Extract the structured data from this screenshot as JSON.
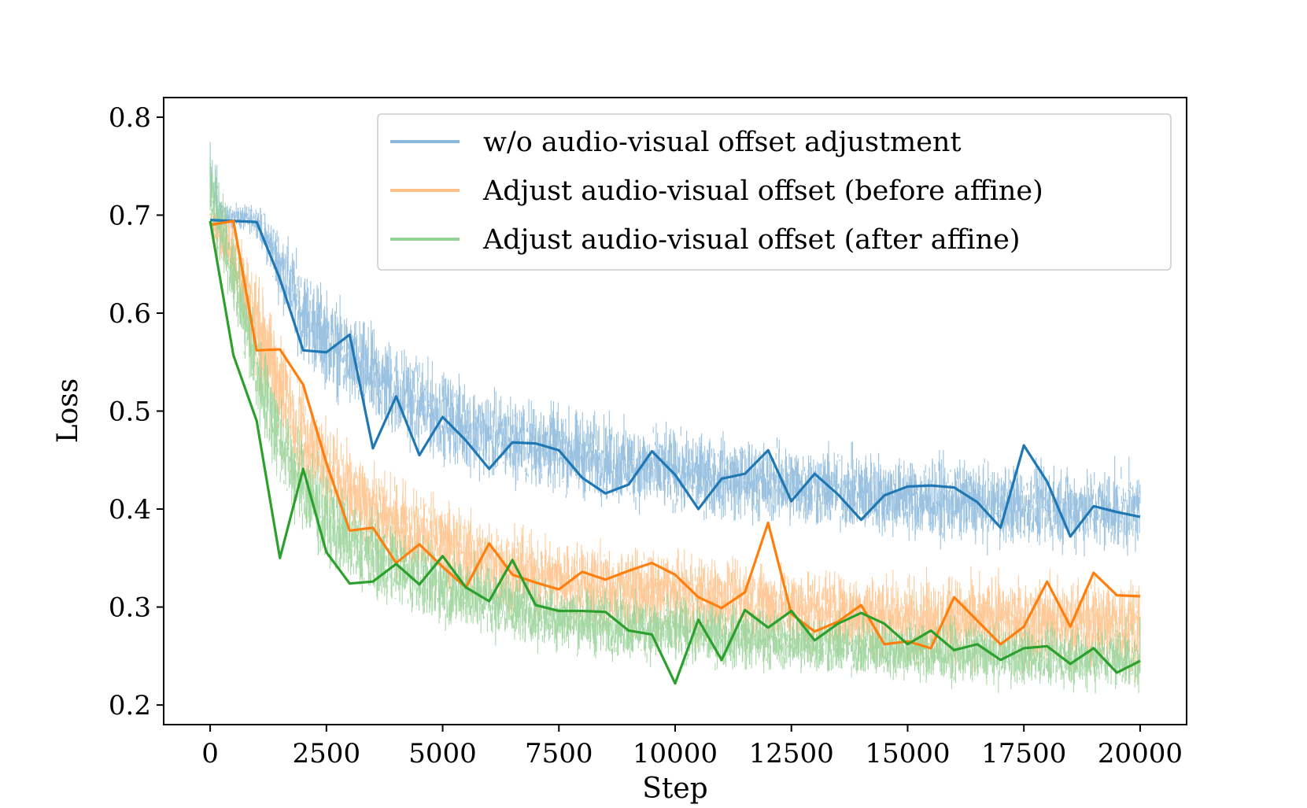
{
  "chart_data": {
    "type": "line",
    "title": "",
    "xlabel": "Step",
    "ylabel": "Loss",
    "xlim": [
      -1000,
      21000
    ],
    "ylim": [
      0.18,
      0.82
    ],
    "xticks": [
      0,
      2500,
      5000,
      7500,
      10000,
      12500,
      15000,
      17500,
      20000
    ],
    "yticks": [
      0.2,
      0.3,
      0.4,
      0.5,
      0.6,
      0.7,
      0.8
    ],
    "grid": false,
    "legend_position": "top-right",
    "series": [
      {
        "name": "w/o audio-visual offset adjustment",
        "color": "#1f77b4",
        "raw_color": "#8ab8dc",
        "raw_band": [
          [
            0,
            0.66,
            0.79
          ],
          [
            300,
            0.688,
            0.71
          ],
          [
            1000,
            0.68,
            0.71
          ],
          [
            1500,
            0.61,
            0.69
          ],
          [
            2000,
            0.55,
            0.65
          ],
          [
            3000,
            0.5,
            0.6
          ],
          [
            4000,
            0.47,
            0.57
          ],
          [
            5000,
            0.45,
            0.54
          ],
          [
            6000,
            0.43,
            0.52
          ],
          [
            7000,
            0.42,
            0.51
          ],
          [
            8000,
            0.41,
            0.5
          ],
          [
            9000,
            0.4,
            0.49
          ],
          [
            10000,
            0.395,
            0.48
          ],
          [
            12000,
            0.385,
            0.47
          ],
          [
            14000,
            0.375,
            0.46
          ],
          [
            16000,
            0.365,
            0.45
          ],
          [
            18000,
            0.36,
            0.445
          ],
          [
            20000,
            0.355,
            0.44
          ]
        ],
        "x": [
          0,
          500,
          1000,
          1500,
          2000,
          2500,
          3000,
          3500,
          4000,
          4500,
          5000,
          5500,
          6000,
          6500,
          7000,
          7500,
          8000,
          8500,
          9000,
          9500,
          10000,
          10500,
          11000,
          11500,
          12000,
          12500,
          13000,
          13500,
          14000,
          14500,
          15000,
          15500,
          16000,
          16500,
          17000,
          17500,
          18000,
          18500,
          19000,
          19500,
          20000
        ],
        "y": [
          0.695,
          0.694,
          0.693,
          0.635,
          0.562,
          0.56,
          0.578,
          0.462,
          0.515,
          0.455,
          0.494,
          0.47,
          0.441,
          0.468,
          0.467,
          0.46,
          0.432,
          0.416,
          0.425,
          0.459,
          0.435,
          0.4,
          0.431,
          0.436,
          0.46,
          0.408,
          0.436,
          0.415,
          0.389,
          0.414,
          0.423,
          0.424,
          0.422,
          0.407,
          0.381,
          0.465,
          0.428,
          0.372,
          0.403,
          0.397,
          0.392
        ]
      },
      {
        "name": "Adjust audio-visual offset (before affine)",
        "color": "#ff7f0e",
        "raw_color": "#ffbf86",
        "raw_band": [
          [
            0,
            0.68,
            0.71
          ],
          [
            500,
            0.62,
            0.7
          ],
          [
            1000,
            0.53,
            0.64
          ],
          [
            1500,
            0.47,
            0.58
          ],
          [
            2000,
            0.42,
            0.53
          ],
          [
            3000,
            0.37,
            0.46
          ],
          [
            4000,
            0.34,
            0.43
          ],
          [
            5000,
            0.32,
            0.41
          ],
          [
            6000,
            0.3,
            0.39
          ],
          [
            7000,
            0.29,
            0.375
          ],
          [
            8000,
            0.28,
            0.365
          ],
          [
            10000,
            0.27,
            0.355
          ],
          [
            12000,
            0.26,
            0.345
          ],
          [
            14000,
            0.25,
            0.335
          ],
          [
            16000,
            0.245,
            0.33
          ],
          [
            18000,
            0.24,
            0.33
          ],
          [
            20000,
            0.235,
            0.33
          ]
        ],
        "x": [
          0,
          500,
          1000,
          1500,
          2000,
          2500,
          3000,
          3500,
          4000,
          4500,
          5000,
          5500,
          6000,
          6500,
          7000,
          7500,
          8000,
          8500,
          9000,
          9500,
          10000,
          10500,
          11000,
          11500,
          12000,
          12500,
          13000,
          13500,
          14000,
          14500,
          15000,
          15500,
          16000,
          16500,
          17000,
          17500,
          18000,
          18500,
          19000,
          19500,
          20000
        ],
        "y": [
          0.69,
          0.694,
          0.562,
          0.563,
          0.527,
          0.447,
          0.378,
          0.381,
          0.345,
          0.364,
          0.341,
          0.32,
          0.365,
          0.333,
          0.325,
          0.318,
          0.336,
          0.328,
          0.337,
          0.345,
          0.333,
          0.31,
          0.299,
          0.315,
          0.386,
          0.293,
          0.275,
          0.285,
          0.302,
          0.262,
          0.265,
          0.258,
          0.31,
          0.286,
          0.262,
          0.28,
          0.326,
          0.28,
          0.335,
          0.312,
          0.311
        ]
      },
      {
        "name": "Adjust audio-visual offset (after affine)",
        "color": "#2ca02c",
        "raw_color": "#96d296",
        "raw_band": [
          [
            0,
            0.68,
            0.77
          ],
          [
            500,
            0.6,
            0.68
          ],
          [
            1000,
            0.49,
            0.59
          ],
          [
            1500,
            0.42,
            0.52
          ],
          [
            2000,
            0.37,
            0.47
          ],
          [
            3000,
            0.32,
            0.41
          ],
          [
            4000,
            0.3,
            0.38
          ],
          [
            5000,
            0.28,
            0.36
          ],
          [
            6000,
            0.27,
            0.345
          ],
          [
            7000,
            0.26,
            0.33
          ],
          [
            8000,
            0.25,
            0.32
          ],
          [
            10000,
            0.24,
            0.31
          ],
          [
            12000,
            0.235,
            0.3
          ],
          [
            14000,
            0.228,
            0.29
          ],
          [
            16000,
            0.222,
            0.285
          ],
          [
            18000,
            0.218,
            0.28
          ],
          [
            20000,
            0.215,
            0.28
          ]
        ],
        "x": [
          0,
          500,
          1000,
          1500,
          2000,
          2500,
          3000,
          3500,
          4000,
          4500,
          5000,
          5500,
          6000,
          6500,
          7000,
          7500,
          8000,
          8500,
          9000,
          9500,
          10000,
          10500,
          11000,
          11500,
          12000,
          12500,
          13000,
          13500,
          14000,
          14500,
          15000,
          15500,
          16000,
          16500,
          17000,
          17500,
          18000,
          18500,
          19000,
          19500,
          20000
        ],
        "y": [
          0.694,
          0.557,
          0.49,
          0.35,
          0.441,
          0.356,
          0.324,
          0.326,
          0.344,
          0.323,
          0.352,
          0.32,
          0.306,
          0.348,
          0.302,
          0.296,
          0.296,
          0.295,
          0.276,
          0.272,
          0.222,
          0.287,
          0.246,
          0.297,
          0.279,
          0.296,
          0.266,
          0.283,
          0.294,
          0.283,
          0.262,
          0.276,
          0.256,
          0.262,
          0.246,
          0.258,
          0.26,
          0.242,
          0.258,
          0.233,
          0.245
        ]
      }
    ]
  }
}
